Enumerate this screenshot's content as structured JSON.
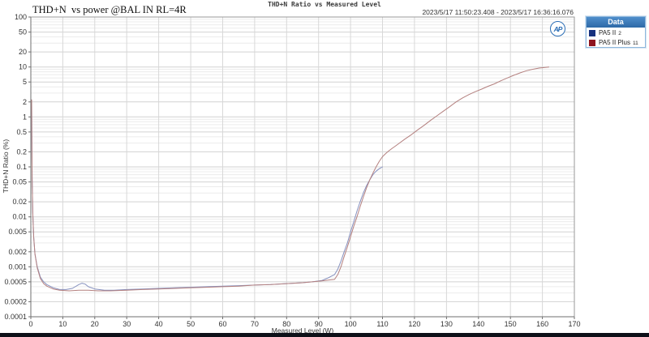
{
  "header": {
    "left_title": "THD+N  vs power @BAL IN RL=4R",
    "center_title": "THD+N Ratio vs Measured Level",
    "date_range": "2023/5/17 11:50:23.408 - 2023/5/17 16:36:16.076"
  },
  "logo": {
    "text": "AP"
  },
  "legend": {
    "title": "Data",
    "series": [
      {
        "label": "PA5 II",
        "num": "2",
        "swatch_color": "#17317e"
      },
      {
        "label": "PA5 II Plus",
        "num": "11",
        "swatch_color": "#8e1420"
      }
    ]
  },
  "footer": {
    "bar_color": "#0d1018"
  },
  "chart_data": {
    "type": "line",
    "title": "THD+N Ratio vs Measured Level",
    "xlabel": "Measured Level (W)",
    "ylabel": "THD+N Ratio (%)",
    "grid": true,
    "legend_position": "top-right",
    "x_axis": {
      "scale": "linear",
      "min": 0,
      "max": 170,
      "tick_step": 10,
      "ticks": [
        "0",
        "10",
        "20",
        "30",
        "40",
        "50",
        "60",
        "70",
        "80",
        "90",
        "100",
        "110",
        "120",
        "130",
        "140",
        "150",
        "160",
        "170"
      ]
    },
    "y_axis": {
      "scale": "log",
      "min": 0.0001,
      "max": 100,
      "ticks": [
        "100",
        "50",
        "20",
        "10",
        "5",
        "2",
        "1",
        "0.5",
        "0.2",
        "0.1",
        "0.05",
        "0.02",
        "0.01",
        "0.005",
        "0.002",
        "0.001",
        "0.0005",
        "0.0002",
        "0.0001"
      ]
    },
    "series": [
      {
        "name": "PA5 II 2",
        "color": "#8691bf",
        "points": [
          [
            0.25,
            2.2
          ],
          [
            0.3,
            0.5
          ],
          [
            0.4,
            0.06
          ],
          [
            0.6,
            0.012
          ],
          [
            0.9,
            0.004
          ],
          [
            1.3,
            0.0018
          ],
          [
            2,
            0.001
          ],
          [
            3,
            0.00062
          ],
          [
            4,
            0.0005
          ],
          [
            5,
            0.00044
          ],
          [
            7,
            0.00038
          ],
          [
            9,
            0.00035
          ],
          [
            11,
            0.00035
          ],
          [
            13,
            0.00037
          ],
          [
            15,
            0.00044
          ],
          [
            16,
            0.00047
          ],
          [
            17,
            0.00045
          ],
          [
            18,
            0.0004
          ],
          [
            20,
            0.00036
          ],
          [
            23,
            0.00034
          ],
          [
            26,
            0.00034
          ],
          [
            30,
            0.00035
          ],
          [
            35,
            0.00036
          ],
          [
            40,
            0.00037
          ],
          [
            45,
            0.00038
          ],
          [
            50,
            0.00039
          ],
          [
            55,
            0.0004
          ],
          [
            60,
            0.00041
          ],
          [
            65,
            0.00042
          ],
          [
            70,
            0.00043
          ],
          [
            75,
            0.00044
          ],
          [
            80,
            0.00046
          ],
          [
            85,
            0.00048
          ],
          [
            88,
            0.0005
          ],
          [
            91,
            0.00053
          ],
          [
            93,
            0.0006
          ],
          [
            94,
            0.00065
          ],
          [
            95,
            0.0007
          ],
          [
            96,
            0.0009
          ],
          [
            97,
            0.0013
          ],
          [
            98,
            0.002
          ],
          [
            99,
            0.003
          ],
          [
            100,
            0.005
          ],
          [
            101,
            0.008
          ],
          [
            102,
            0.013
          ],
          [
            103,
            0.02
          ],
          [
            104,
            0.03
          ],
          [
            105,
            0.042
          ],
          [
            106,
            0.055
          ],
          [
            107,
            0.07
          ],
          [
            108,
            0.082
          ],
          [
            109,
            0.092
          ],
          [
            110,
            0.1
          ]
        ]
      },
      {
        "name": "PA5 II Plus 11",
        "color": "#b4807f",
        "points": [
          [
            0.25,
            2.2
          ],
          [
            0.3,
            0.5
          ],
          [
            0.4,
            0.06
          ],
          [
            0.6,
            0.012
          ],
          [
            0.9,
            0.004
          ],
          [
            1.3,
            0.0018
          ],
          [
            2,
            0.00095
          ],
          [
            3,
            0.00058
          ],
          [
            4,
            0.00046
          ],
          [
            5,
            0.00041
          ],
          [
            7,
            0.00036
          ],
          [
            9,
            0.00034
          ],
          [
            12,
            0.00033
          ],
          [
            15,
            0.00034
          ],
          [
            18,
            0.00034
          ],
          [
            21,
            0.00033
          ],
          [
            25,
            0.00033
          ],
          [
            30,
            0.00034
          ],
          [
            35,
            0.00035
          ],
          [
            40,
            0.00036
          ],
          [
            45,
            0.00037
          ],
          [
            50,
            0.00038
          ],
          [
            55,
            0.00039
          ],
          [
            60,
            0.0004
          ],
          [
            65,
            0.00041
          ],
          [
            70,
            0.00043
          ],
          [
            75,
            0.00044
          ],
          [
            80,
            0.00046
          ],
          [
            85,
            0.00048
          ],
          [
            88,
            0.0005
          ],
          [
            91,
            0.00052
          ],
          [
            93,
            0.00054
          ],
          [
            95,
            0.00056
          ],
          [
            96,
            0.0007
          ],
          [
            97,
            0.001
          ],
          [
            98,
            0.0016
          ],
          [
            99,
            0.0025
          ],
          [
            100,
            0.004
          ],
          [
            101,
            0.0065
          ],
          [
            102,
            0.01
          ],
          [
            103,
            0.016
          ],
          [
            104,
            0.025
          ],
          [
            105,
            0.038
          ],
          [
            106,
            0.055
          ],
          [
            107,
            0.075
          ],
          [
            108,
            0.1
          ],
          [
            109,
            0.13
          ],
          [
            110,
            0.16
          ],
          [
            111,
            0.185
          ],
          [
            112,
            0.21
          ],
          [
            113,
            0.235
          ],
          [
            114,
            0.26
          ],
          [
            115,
            0.29
          ],
          [
            117,
            0.36
          ],
          [
            119,
            0.44
          ],
          [
            121,
            0.55
          ],
          [
            123,
            0.68
          ],
          [
            125,
            0.85
          ],
          [
            127,
            1.05
          ],
          [
            129,
            1.3
          ],
          [
            131,
            1.6
          ],
          [
            133,
            2.0
          ],
          [
            135,
            2.4
          ],
          [
            137,
            2.8
          ],
          [
            139,
            3.2
          ],
          [
            141,
            3.6
          ],
          [
            143,
            4.1
          ],
          [
            145,
            4.6
          ],
          [
            147,
            5.3
          ],
          [
            149,
            6.0
          ],
          [
            151,
            6.8
          ],
          [
            153,
            7.6
          ],
          [
            155,
            8.4
          ],
          [
            157,
            9.0
          ],
          [
            159,
            9.5
          ],
          [
            162,
            10
          ]
        ]
      }
    ]
  }
}
